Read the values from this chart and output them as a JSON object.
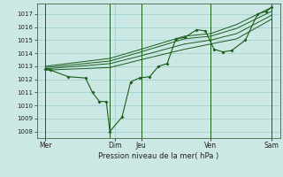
{
  "background_color": "#cce8e4",
  "grid_color": "#99cccc",
  "line_color": "#1a5c1a",
  "xlabel": "Pression niveau de la mer( hPa )",
  "ylim": [
    1007.5,
    1017.8
  ],
  "yticks": [
    1008,
    1009,
    1010,
    1011,
    1012,
    1013,
    1014,
    1015,
    1016,
    1017
  ],
  "xlim": [
    0,
    14.0
  ],
  "xtick_labels": [
    "Mer",
    "Dim",
    "Jeu",
    "Ven",
    "Sam"
  ],
  "xtick_pos": [
    0.5,
    4.5,
    6.0,
    10.0,
    13.5
  ],
  "vlines_x": [
    0.5,
    4.2,
    6.0,
    10.0,
    13.5
  ],
  "main_x": [
    0.5,
    0.8,
    1.8,
    2.8,
    3.2,
    3.6,
    4.0,
    4.2,
    4.9,
    5.4,
    5.9,
    6.5,
    7.0,
    7.5,
    8.0,
    8.5,
    9.2,
    9.7,
    10.2,
    10.7,
    11.2,
    12.0,
    12.7,
    13.2,
    13.5
  ],
  "main_y": [
    1012.8,
    1012.7,
    1012.2,
    1012.1,
    1011.0,
    1010.3,
    1010.3,
    1008.0,
    1009.1,
    1011.8,
    1012.1,
    1012.2,
    1013.0,
    1013.2,
    1015.1,
    1015.2,
    1015.8,
    1015.7,
    1014.3,
    1014.1,
    1014.2,
    1015.0,
    1017.0,
    1017.2,
    1017.5
  ],
  "band1_x": [
    0.5,
    4.2,
    6.0,
    8.5,
    10.0,
    11.5,
    13.5
  ],
  "band1_y": [
    1013.0,
    1013.6,
    1014.3,
    1015.3,
    1015.5,
    1016.2,
    1017.5
  ],
  "band2_x": [
    0.5,
    4.2,
    6.0,
    8.5,
    10.0,
    11.5,
    13.5
  ],
  "band2_y": [
    1012.9,
    1013.4,
    1014.1,
    1015.1,
    1015.3,
    1015.9,
    1017.2
  ],
  "band3_x": [
    0.5,
    4.2,
    6.0,
    8.5,
    10.0,
    11.5,
    13.5
  ],
  "band3_y": [
    1012.8,
    1013.2,
    1013.8,
    1014.7,
    1015.0,
    1015.5,
    1016.9
  ],
  "band4_x": [
    0.5,
    4.2,
    6.0,
    8.5,
    10.0,
    11.5,
    13.5
  ],
  "band4_y": [
    1012.7,
    1012.9,
    1013.5,
    1014.3,
    1014.7,
    1015.1,
    1016.6
  ]
}
